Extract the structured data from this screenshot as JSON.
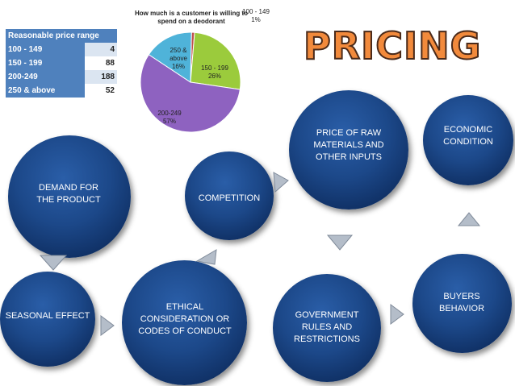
{
  "table": {
    "header": "Reasonable price range",
    "rows": [
      {
        "range": "100 - 149",
        "value": "4"
      },
      {
        "range": "150 - 199",
        "value": "88"
      },
      {
        "range": "200-249",
        "value": "188"
      },
      {
        "range": "250 & above",
        "value": "52"
      }
    ]
  },
  "chart_data": {
    "type": "pie",
    "title": "How much is a customer is willing to spend on a deodorant",
    "categories": [
      "100 - 149",
      "150 - 199",
      "200-249",
      "250 & above"
    ],
    "values": [
      1,
      26,
      57,
      16
    ],
    "value_labels": [
      "1%",
      "26%",
      "57%",
      "16%"
    ],
    "colors": [
      "#c0504d",
      "#9bcb3c",
      "#8e62c0",
      "#4fb3d9"
    ]
  },
  "title": "PRICING",
  "nodes": {
    "demand": "DEMAND FOR THE PRODUCT",
    "competition": "COMPETITION",
    "raw": "PRICE OF RAW MATERIALS AND OTHER INPUTS",
    "economic": "ECONOMIC CONDITION",
    "seasonal": "SEASONAL EFFECT",
    "ethical": "ETHICAL CONSIDERATION OR CODES OF CONDUCT",
    "government": "GOVERNMENT RULES AND RESTRICTIONS",
    "buyers": "BUYERS BEHAVIOR"
  },
  "colors": {
    "circle": "#1c4889",
    "arrow": "#b4bdc9",
    "title": "#f28a3c"
  }
}
